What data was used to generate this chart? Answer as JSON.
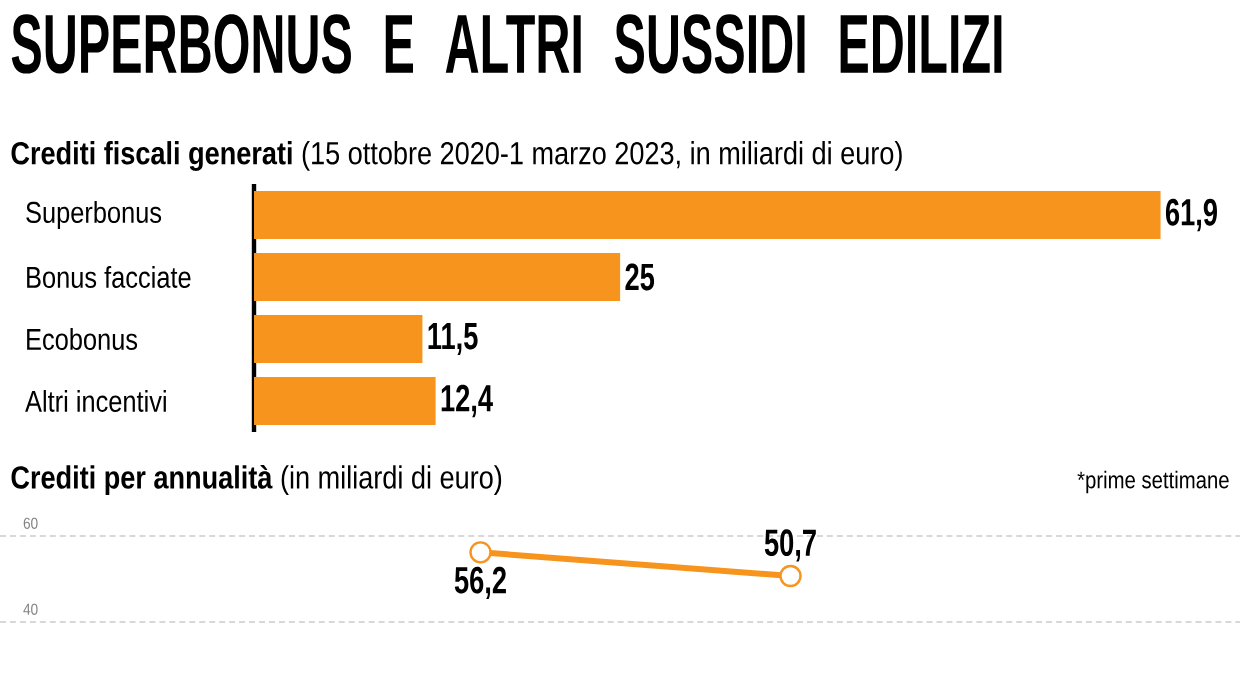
{
  "chart_data": [
    {
      "type": "bar",
      "orientation": "horizontal",
      "title": "SUPERBONUS E ALTRI SUSSIDI EDILIZI",
      "subtitle": "**Crediti fiscali generati** (15 ottobre 2020-1 marzo 2023, in miliardi di euro)",
      "categories": [
        "Superbonus",
        "Bonus facciate",
        "Ecobonus",
        "Altri incentivi"
      ],
      "values": [
        61.9,
        25,
        11.5,
        12.4
      ],
      "value_labels": [
        "61,9",
        "25",
        "11,5",
        "12,4"
      ],
      "color": "#f7941d",
      "xlim": [
        0,
        62
      ],
      "tick_labels": "y"
    },
    {
      "type": "line",
      "title": "**Crediti per annualità** (in miliardi di euro)",
      "annotations": [
        "*prime settimane"
      ],
      "categories": [
        null,
        null,
        null,
        null
      ],
      "values": [
        null,
        56.2,
        50.7,
        null
      ],
      "value_labels": [
        null,
        "56,2",
        "50,7",
        null
      ],
      "color": "#f7941d",
      "ylim": [
        40,
        60
      ],
      "yticks": [
        40,
        60
      ],
      "grid": "y",
      "marker": "circle",
      "tick_labels": "y"
    }
  ]
}
